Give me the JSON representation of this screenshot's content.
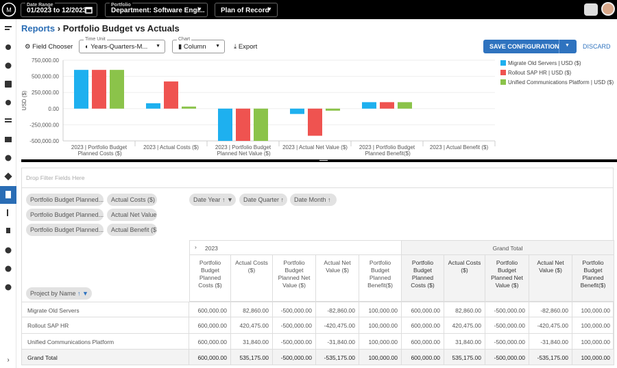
{
  "header": {
    "date_range_label": "Date Range",
    "date_range": "01/2023 to 12/2023",
    "portfolio_label": "Portfolio",
    "portfolio": "Department: Software Engi...",
    "plan": "Plan of Record"
  },
  "breadcrumb": {
    "parent": "Reports",
    "separator": "›",
    "current": "Portfolio Budget vs Actuals"
  },
  "toolbar": {
    "field_chooser": "Field Chooser",
    "time_unit_label": "Time Unit",
    "time_unit": "Years-Quarters-M...",
    "chart_label": "Chart",
    "chart": "Column",
    "export": "Export",
    "save": "SAVE CONFIGURATION",
    "discard": "DISCARD"
  },
  "chart_data": {
    "type": "bar",
    "y_label": "USD ($)",
    "categories": [
      "2023 | Portfolio Budget Planned Costs ($)",
      "2023 | Actual Costs ($)",
      "2023 | Portfolio Budget Planned Net Value ($)",
      "2023 | Actual Net Value ($)",
      "2023 | Portfolio Budget Planned Benefit($)",
      "2023 | Actual Benefit ($)"
    ],
    "series": [
      {
        "name": "Migrate Old Servers | USD ($)",
        "color": "#1eb0ef",
        "values": [
          600000,
          82860,
          -500000,
          -82860,
          100000,
          null
        ]
      },
      {
        "name": "Rollout SAP HR | USD ($)",
        "color": "#ef5350",
        "values": [
          600000,
          420475,
          -500000,
          -420475,
          100000,
          null
        ]
      },
      {
        "name": "Unified Communications Platform | USD ($)",
        "color": "#8bc34a",
        "values": [
          600000,
          31840,
          -500000,
          -31840,
          100000,
          null
        ]
      }
    ],
    "ylim": [
      -500000,
      750000
    ],
    "yticks": [
      {
        "value": 750000,
        "label": "750,000.00"
      },
      {
        "value": 500000,
        "label": "500,000.00"
      },
      {
        "value": 250000,
        "label": "250,000.00"
      },
      {
        "value": 0,
        "label": "0.00"
      },
      {
        "value": -250000,
        "label": "-250,000.00"
      },
      {
        "value": -500000,
        "label": "-500,000.00"
      }
    ],
    "grid": true,
    "legend": "right"
  },
  "pivot": {
    "filter_placeholder": "Drop Filter Fields Here",
    "data_fields": [
      "Portfolio Budget Planned...",
      "Actual Costs ($)",
      "Portfolio Budget Planned...",
      "Actual Net Value ($)",
      "Portfolio Budget Planned...",
      "Actual Benefit ($)"
    ],
    "column_fields": [
      "Date Year",
      "Date Quarter",
      "Date Month"
    ],
    "row_field": "Project by Name"
  },
  "table": {
    "column_groups": [
      "2023",
      "Grand Total"
    ],
    "columns": [
      "Portfolio Budget Planned Costs ($)",
      "Actual Costs ($)",
      "Portfolio Budget Planned Net Value ($)",
      "Actual Net Value ($)",
      "Portfolio Budget Planned Benefit($)",
      "Portfolio Budget Planned Costs ($)",
      "Actual Costs ($)",
      "Portfolio Budget Planned Net Value ($)",
      "Actual Net Value ($)",
      "Portfolio Budget Planned Benefit($)"
    ],
    "rows": [
      [
        "Migrate Old Servers",
        "600,000.00",
        "82,860.00",
        "-500,000.00",
        "-82,860.00",
        "100,000.00",
        "600,000.00",
        "82,860.00",
        "-500,000.00",
        "-82,860.00",
        "100,000.00"
      ],
      [
        "Rollout SAP HR",
        "600,000.00",
        "420,475.00",
        "-500,000.00",
        "-420,475.00",
        "100,000.00",
        "600,000.00",
        "420,475.00",
        "-500,000.00",
        "-420,475.00",
        "100,000.00"
      ],
      [
        "Unified Communications Platform",
        "600,000.00",
        "31,840.00",
        "-500,000.00",
        "-31,840.00",
        "100,000.00",
        "600,000.00",
        "31,840.00",
        "-500,000.00",
        "-31,840.00",
        "100,000.00"
      ],
      [
        "Grand Total",
        "600,000.00",
        "535,175.00",
        "-500,000.00",
        "-535,175.00",
        "100,000.00",
        "600,000.00",
        "535,175.00",
        "-500,000.00",
        "-535,175.00",
        "100,000.00"
      ]
    ]
  }
}
